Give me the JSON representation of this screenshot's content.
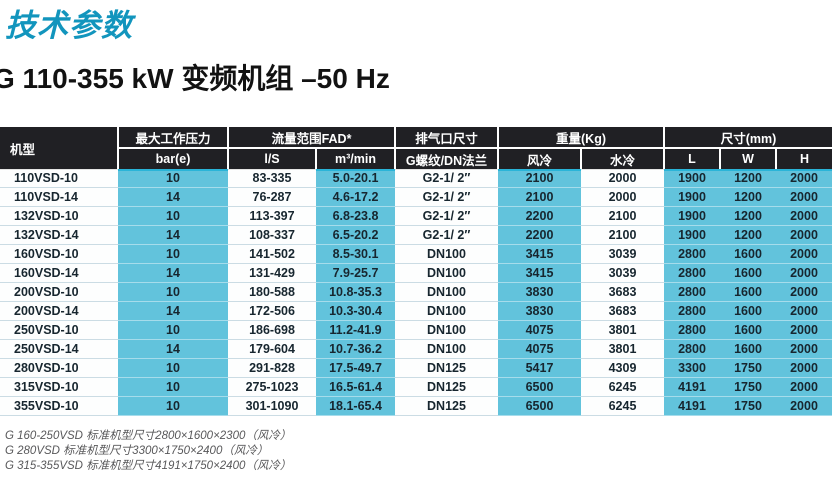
{
  "page": {
    "title": "技术参数",
    "subtitle": "G 110-355 kW 变频机组 –50 Hz"
  },
  "colors": {
    "title_teal": "#1295BD",
    "header_dark": "#202024",
    "cell_cyan": "#62C3DC",
    "cyan_accent": "#2AB4D8",
    "text_dark": "#17262F"
  },
  "table": {
    "header": {
      "model": "机型",
      "groups": [
        {
          "label": "最大工作压力",
          "subs": [
            "bar(e)"
          ]
        },
        {
          "label": "流量范围FAD*",
          "subs": [
            "l/S",
            "m³/min"
          ]
        },
        {
          "label": "排气口尺寸",
          "subs": [
            "G螺纹/DN法兰"
          ]
        },
        {
          "label": "重量(Kg)",
          "subs": [
            "风冷",
            "水冷"
          ]
        },
        {
          "label": "尺寸(mm)",
          "subs": [
            "L",
            "W",
            "H"
          ]
        }
      ]
    },
    "rows": [
      [
        "110VSD-10",
        "10",
        "83-335",
        "5.0-20.1",
        "G2-1/ 2″",
        "2100",
        "2000",
        "1900",
        "1200",
        "2000"
      ],
      [
        "110VSD-14",
        "14",
        "76-287",
        "4.6-17.2",
        "G2-1/ 2″",
        "2100",
        "2000",
        "1900",
        "1200",
        "2000"
      ],
      [
        "132VSD-10",
        "10",
        "113-397",
        "6.8-23.8",
        "G2-1/ 2″",
        "2200",
        "2100",
        "1900",
        "1200",
        "2000"
      ],
      [
        "132VSD-14",
        "14",
        "108-337",
        "6.5-20.2",
        "G2-1/ 2″",
        "2200",
        "2100",
        "1900",
        "1200",
        "2000"
      ],
      [
        "160VSD-10",
        "10",
        "141-502",
        "8.5-30.1",
        "DN100",
        "3415",
        "3039",
        "2800",
        "1600",
        "2000"
      ],
      [
        "160VSD-14",
        "14",
        "131-429",
        "7.9-25.7",
        "DN100",
        "3415",
        "3039",
        "2800",
        "1600",
        "2000"
      ],
      [
        "200VSD-10",
        "10",
        "180-588",
        "10.8-35.3",
        "DN100",
        "3830",
        "3683",
        "2800",
        "1600",
        "2000"
      ],
      [
        "200VSD-14",
        "14",
        "172-506",
        "10.3-30.4",
        "DN100",
        "3830",
        "3683",
        "2800",
        "1600",
        "2000"
      ],
      [
        "250VSD-10",
        "10",
        "186-698",
        "11.2-41.9",
        "DN100",
        "4075",
        "3801",
        "2800",
        "1600",
        "2000"
      ],
      [
        "250VSD-14",
        "14",
        "179-604",
        "10.7-36.2",
        "DN100",
        "4075",
        "3801",
        "2800",
        "1600",
        "2000"
      ],
      [
        "280VSD-10",
        "10",
        "291-828",
        "17.5-49.7",
        "DN125",
        "5417",
        "4309",
        "3300",
        "1750",
        "2000"
      ],
      [
        "315VSD-10",
        "10",
        "275-1023",
        "16.5-61.4",
        "DN125",
        "6500",
        "6245",
        "4191",
        "1750",
        "2000"
      ],
      [
        "355VSD-10",
        "10",
        "301-1090",
        "18.1-65.4",
        "DN125",
        "6500",
        "6245",
        "4191",
        "1750",
        "2000"
      ]
    ]
  },
  "notes": [
    "G 160-250VSD 标准机型尺寸2800×1600×2300（风冷）",
    "G 280VSD 标准机型尺寸3300×1750×2400（风冷）",
    "G 315-355VSD 标准机型尺寸4191×1750×2400（风冷）"
  ]
}
